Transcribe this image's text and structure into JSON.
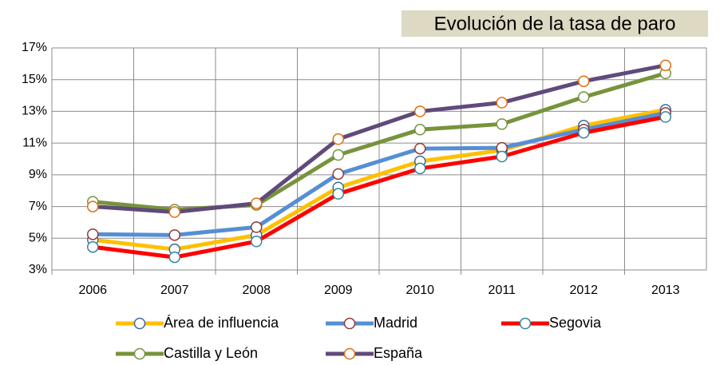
{
  "chart_data": {
    "type": "line",
    "title": "Evolución de la tasa  de paro",
    "categories": [
      "2006",
      "2007",
      "2008",
      "2009",
      "2010",
      "2011",
      "2012",
      "2013"
    ],
    "series": [
      {
        "name": "Área de influencia",
        "color": "#ffc000",
        "marker_color": "#3a6b9c",
        "values": [
          4.9,
          4.3,
          5.2,
          8.2,
          9.85,
          10.55,
          12.1,
          13.1
        ]
      },
      {
        "name": "Madrid",
        "color": "#558ed5",
        "marker_color": "#953735",
        "values": [
          5.25,
          5.2,
          5.7,
          9.05,
          10.65,
          10.7,
          11.85,
          12.9
        ]
      },
      {
        "name": "Segovia",
        "color": "#ff0000",
        "marker_color": "#31859c",
        "values": [
          4.45,
          3.8,
          4.8,
          7.8,
          9.4,
          10.15,
          11.65,
          12.65
        ]
      },
      {
        "name": "Castilla y León",
        "color": "#77933c",
        "marker_color": "#77933c",
        "values": [
          7.3,
          6.8,
          7.1,
          10.25,
          11.85,
          12.2,
          13.9,
          15.4
        ]
      },
      {
        "name": "España",
        "color": "#604a7b",
        "marker_color": "#e46c0a",
        "values": [
          7.0,
          6.65,
          7.2,
          11.25,
          13.0,
          13.55,
          14.9,
          15.9
        ]
      }
    ],
    "ylim": [
      3,
      17
    ],
    "yticks": [
      {
        "value": 3,
        "label": "3%"
      },
      {
        "value": 5,
        "label": "5%"
      },
      {
        "value": 7,
        "label": "7%"
      },
      {
        "value": 9,
        "label": "9%"
      },
      {
        "value": 11,
        "label": "11%"
      },
      {
        "value": 13,
        "label": "13%"
      },
      {
        "value": 15,
        "label": "15%"
      },
      {
        "value": 17,
        "label": "17%"
      }
    ],
    "grid": true,
    "legend": "bottom"
  }
}
